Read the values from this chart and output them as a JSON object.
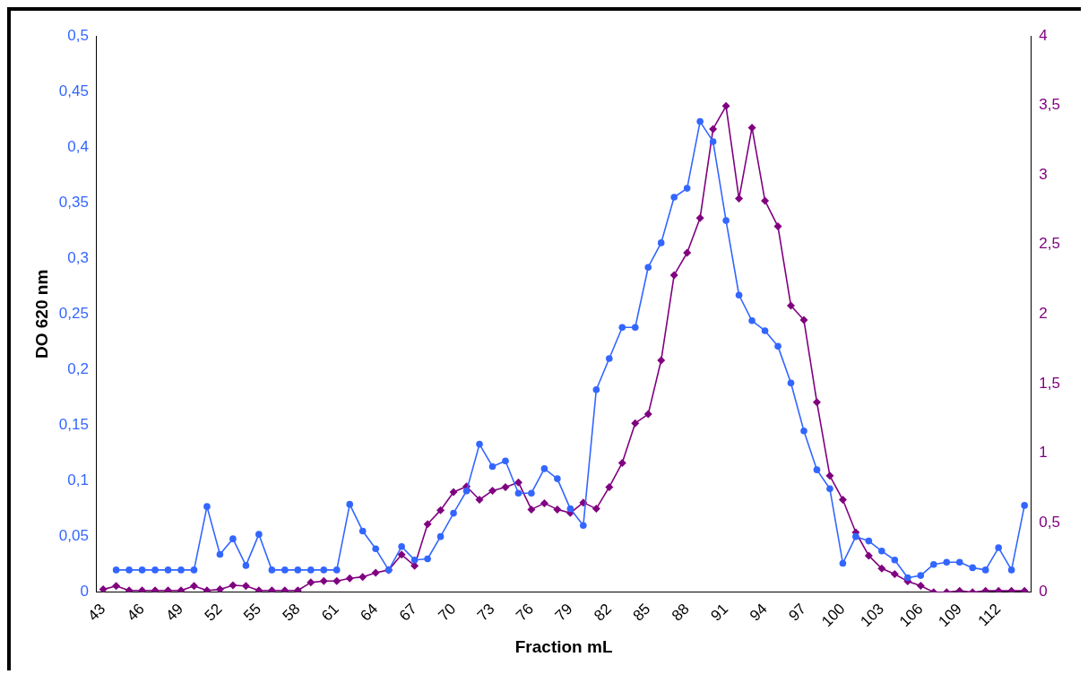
{
  "chart_data": {
    "type": "line",
    "xlabel": "Fraction mL",
    "ylabel": "DO 620 nm",
    "categories": [
      "43",
      null,
      null,
      "46",
      null,
      null,
      "49",
      null,
      null,
      "52",
      null,
      null,
      "55",
      null,
      null,
      "58",
      null,
      null,
      "61",
      null,
      null,
      "64",
      null,
      null,
      "67",
      null,
      null,
      "70",
      null,
      null,
      "73",
      null,
      null,
      "76",
      null,
      null,
      "79",
      null,
      null,
      "82",
      null,
      null,
      "85",
      null,
      null,
      "88",
      null,
      null,
      "91",
      null,
      null,
      "94",
      null,
      null,
      "97",
      null,
      null,
      "100",
      null,
      null,
      "103",
      null,
      null,
      "106",
      null,
      null,
      "109",
      null,
      null,
      "112",
      null,
      null
    ],
    "series": [
      {
        "color": "#3366ff",
        "marker": "circle",
        "axis": "y",
        "values": [
          null,
          0.02,
          0.02,
          0.02,
          0.02,
          0.02,
          0.02,
          0.02,
          0.077,
          0.034,
          0.048,
          0.024,
          0.052,
          0.02,
          0.02,
          0.02,
          0.02,
          0.02,
          0.02,
          0.079,
          0.055,
          0.039,
          0.02,
          0.041,
          0.029,
          0.03,
          0.05,
          0.071,
          0.091,
          0.133,
          0.113,
          0.118,
          0.089,
          0.089,
          0.111,
          0.102,
          0.075,
          0.06,
          0.182,
          0.21,
          0.238,
          0.238,
          0.292,
          0.314,
          0.355,
          0.363,
          0.423,
          0.405,
          0.334,
          0.267,
          0.244,
          0.235,
          0.221,
          0.188,
          0.145,
          0.11,
          0.093,
          0.026,
          0.05,
          0.046,
          0.037,
          0.029,
          0.013,
          0.015,
          0.025,
          0.027,
          0.027,
          0.022,
          0.02,
          0.04,
          0.02,
          0.078
        ]
      },
      {
        "color": "#800080",
        "marker": "diamond",
        "axis": "y2",
        "values": [
          0.02,
          0.045,
          0.013,
          0.013,
          0.013,
          0.013,
          0.013,
          0.045,
          0.013,
          0.02,
          0.05,
          0.045,
          0.013,
          0.013,
          0.013,
          0.013,
          0.07,
          0.08,
          0.08,
          0.1,
          0.11,
          0.14,
          0.16,
          0.27,
          0.19,
          0.49,
          0.59,
          0.72,
          0.76,
          0.665,
          0.73,
          0.755,
          0.79,
          0.595,
          0.64,
          0.595,
          0.57,
          0.645,
          0.6,
          0.756,
          0.93,
          1.215,
          1.28,
          1.667,
          2.28,
          2.44,
          2.69,
          3.33,
          3.495,
          2.83,
          3.34,
          2.815,
          2.63,
          2.06,
          1.957,
          1.366,
          0.837,
          0.665,
          0.43,
          0.263,
          0.17,
          0.13,
          0.078,
          0.047,
          0,
          0,
          0.01,
          0,
          0.01,
          0.01,
          0.01,
          0.01
        ]
      }
    ],
    "ylim": [
      0,
      0.5
    ],
    "yticks": [
      0,
      {
        "value": 0.05,
        "label": "0,05"
      },
      {
        "value": 0.1,
        "label": "0,1"
      },
      {
        "value": 0.15,
        "label": "0,15"
      },
      {
        "value": 0.2,
        "label": "0,2"
      },
      {
        "value": 0.25,
        "label": "0,25"
      },
      {
        "value": 0.3,
        "label": "0,3"
      },
      {
        "value": 0.35,
        "label": "0,35"
      },
      {
        "value": 0.4,
        "label": "0,4"
      },
      {
        "value": 0.45,
        "label": "0,45"
      },
      {
        "value": 0.5,
        "label": "0,5"
      }
    ],
    "y2lim": [
      0,
      4
    ],
    "y2ticks": [
      0,
      {
        "value": 0.5,
        "label": "0,5"
      },
      1,
      {
        "value": 1.5,
        "label": "1,5"
      },
      2,
      {
        "value": 2.5,
        "label": "2,5"
      },
      3,
      {
        "value": 3.5,
        "label": "3,5"
      },
      4
    ],
    "grid": false,
    "legend": false,
    "line_style": "solid"
  }
}
